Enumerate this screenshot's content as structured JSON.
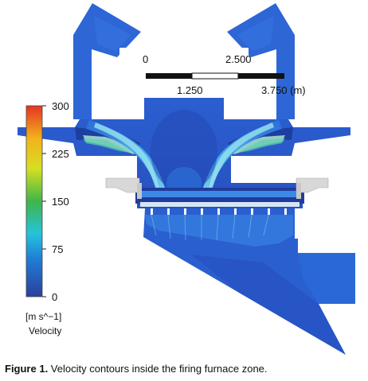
{
  "legend": {
    "ticks": [
      "300",
      "225",
      "150",
      "75",
      "0"
    ],
    "units": "[m s^−1]",
    "quantity": "Velocity",
    "colors": [
      "#e63323",
      "#f2b21c",
      "#d6df22",
      "#3fb54a",
      "#25c3dc",
      "#1f7fd4",
      "#2b3f9d"
    ]
  },
  "scale_bar": {
    "top_labels": [
      "0",
      "2.500"
    ],
    "bottom_labels": [
      "1.250",
      "3.750 (m)"
    ]
  },
  "caption": {
    "label": "Figure 1.",
    "text": " Velocity contours inside the firing furnace zone."
  },
  "colors": {
    "flow_dark": "#1f3fa8",
    "flow_mid": "#2b6ad8",
    "flow_light": "#3fa0f0",
    "flow_jet": "#7fdde6",
    "equipment_gray": "#d8d8d8"
  }
}
